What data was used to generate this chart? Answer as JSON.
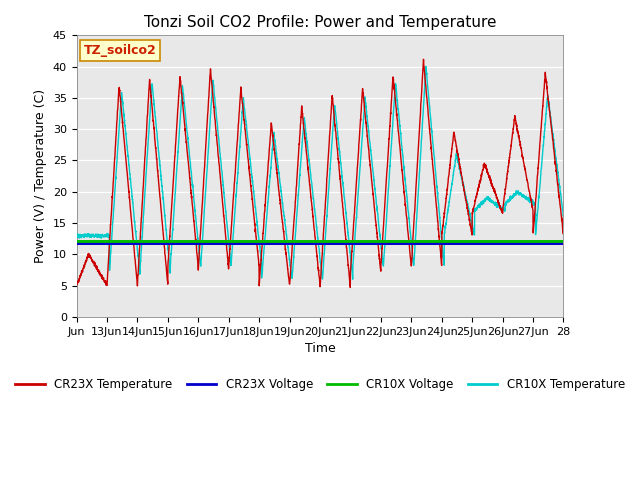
{
  "title": "Tonzi Soil CO2 Profile: Power and Temperature",
  "xlabel": "Time",
  "ylabel": "Power (V) / Temperature (C)",
  "ylim": [
    0,
    45
  ],
  "xlim": [
    0,
    16
  ],
  "fig_bg_color": "#ffffff",
  "plot_bg_color": "#e8e8e8",
  "cr23x_voltage_level": 11.65,
  "cr10x_voltage_level": 12.0,
  "cr23x_voltage_color": "#0000cc",
  "cr10x_voltage_color": "#00bb00",
  "cr23x_temp_color": "#cc0000",
  "cr10x_temp_color": "#00cccc",
  "label_box_text": "TZ_soilco2",
  "x_tick_labels": [
    "Jun",
    "13Jun",
    "14Jun",
    "15Jun",
    "16Jun",
    "17Jun",
    "18Jun",
    "19Jun",
    "20Jun",
    "21Jun",
    "22Jun",
    "23Jun",
    "24Jun",
    "25Jun",
    "26Jun",
    "27Jun",
    "28"
  ],
  "grid_color": "#ffffff",
  "title_fontsize": 11,
  "axis_fontsize": 9,
  "tick_fontsize": 8,
  "legend_entries": [
    "CR23X Temperature",
    "CR23X Voltage",
    "CR10X Voltage",
    "CR10X Temperature"
  ],
  "legend_colors": [
    "#cc0000",
    "#0000cc",
    "#00bb00",
    "#00cccc"
  ],
  "y_ticks": [
    0,
    5,
    10,
    15,
    20,
    25,
    30,
    35,
    40,
    45
  ]
}
